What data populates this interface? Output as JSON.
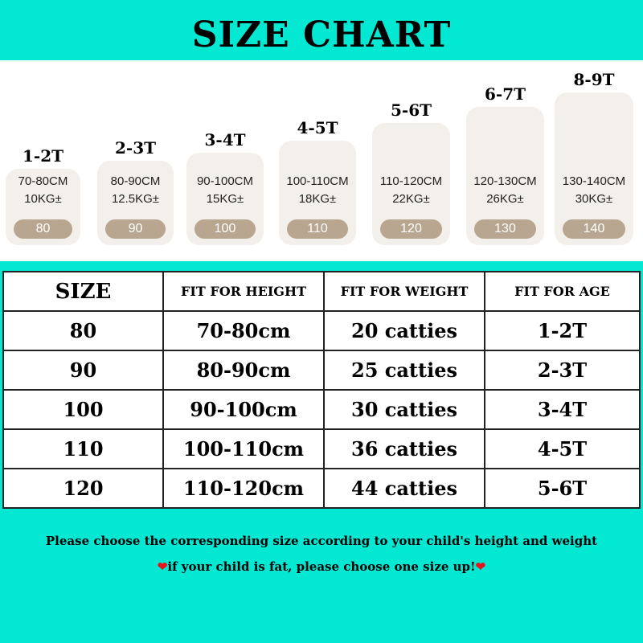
{
  "title": "SIZE CHART",
  "cards": [
    {
      "age": "1-2T",
      "height": "70-80CM",
      "weight": "10KG±",
      "size": "80"
    },
    {
      "age": "2-3T",
      "height": "80-90CM",
      "weight": "12.5KG±",
      "size": "90"
    },
    {
      "age": "3-4T",
      "height": "90-100CM",
      "weight": "15KG±",
      "size": "100"
    },
    {
      "age": "4-5T",
      "height": "100-110CM",
      "weight": "18KG±",
      "size": "110"
    },
    {
      "age": "5-6T",
      "height": "110-120CM",
      "weight": "22KG±",
      "size": "120"
    },
    {
      "age": "6-7T",
      "height": "120-130CM",
      "weight": "26KG±",
      "size": "130"
    },
    {
      "age": "8-9T",
      "height": "130-140CM",
      "weight": "30KG±",
      "size": "140"
    }
  ],
  "table": {
    "headers": [
      "SIZE",
      "FIT FOR HEIGHT",
      "FIT FOR WEIGHT",
      "FIT FOR AGE"
    ],
    "rows": [
      [
        "80",
        "70-80cm",
        "20 catties",
        "1-2T"
      ],
      [
        "90",
        "80-90cm",
        "25 catties",
        "2-3T"
      ],
      [
        "100",
        "90-100cm",
        "30 catties",
        "3-4T"
      ],
      [
        "110",
        "100-110cm",
        "36 catties",
        "4-5T"
      ],
      [
        "120",
        "110-120cm",
        "44 catties",
        "5-6T"
      ]
    ]
  },
  "notes": {
    "line1": "Please choose the corresponding size according to your child's height and weight",
    "line2": "if your child is fat, please choose one size up!",
    "heart_icon": "❤"
  },
  "colors": {
    "background": "#03e8d3",
    "card": "#f3efea",
    "pill": "#b9a690",
    "heart": "#e8141b"
  }
}
